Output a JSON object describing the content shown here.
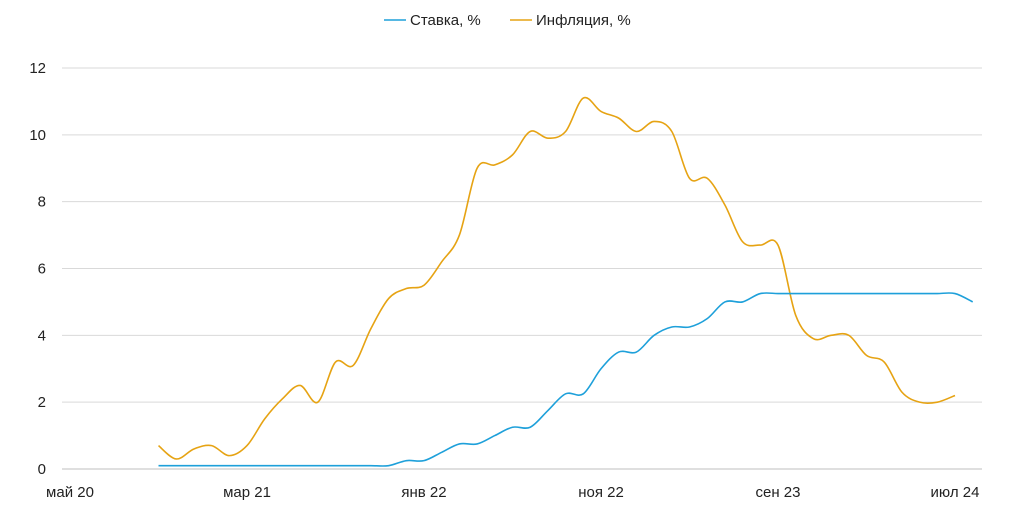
{
  "chart_data": {
    "type": "line",
    "title": "",
    "xlabel": "",
    "ylabel": "",
    "ylim": [
      0,
      12
    ],
    "yticks": [
      0,
      2,
      4,
      6,
      8,
      10,
      12
    ],
    "grid": true,
    "legend_position": "top-center",
    "x_start": "2020-05",
    "x_end": "2024-07",
    "xtick_labels": [
      "май 20",
      "мар 21",
      "янв 22",
      "ноя 22",
      "сен 23",
      "июл 24"
    ],
    "xtick_months_from_start": [
      0,
      10,
      20,
      30,
      40,
      50
    ],
    "series": [
      {
        "name": "Ставка, %",
        "color": "#1ea0da",
        "start_month_offset": 5,
        "values": [
          0.1,
          0.1,
          0.1,
          0.1,
          0.1,
          0.1,
          0.1,
          0.1,
          0.1,
          0.1,
          0.1,
          0.1,
          0.1,
          0.1,
          0.25,
          0.25,
          0.5,
          0.75,
          0.75,
          1.0,
          1.25,
          1.25,
          1.75,
          2.25,
          2.25,
          3.0,
          3.5,
          3.5,
          4.0,
          4.25,
          4.25,
          4.5,
          5.0,
          5.0,
          5.25,
          5.25,
          5.25,
          5.25,
          5.25,
          5.25,
          5.25,
          5.25,
          5.25,
          5.25,
          5.25,
          5.25,
          5.0
        ]
      },
      {
        "name": "Инфляция, %",
        "color": "#e6a313",
        "start_month_offset": 5,
        "values": [
          0.7,
          0.3,
          0.6,
          0.7,
          0.4,
          0.7,
          1.5,
          2.1,
          2.5,
          2.0,
          3.2,
          3.1,
          4.2,
          5.1,
          5.4,
          5.5,
          6.2,
          7.0,
          9.0,
          9.1,
          9.4,
          10.1,
          9.9,
          10.1,
          11.1,
          10.7,
          10.5,
          10.1,
          10.4,
          10.1,
          8.7,
          8.7,
          7.9,
          6.8,
          6.7,
          6.7,
          4.6,
          3.9,
          4.0,
          4.0,
          3.4,
          3.2,
          2.3,
          2.0,
          2.0,
          2.2
        ]
      }
    ]
  }
}
